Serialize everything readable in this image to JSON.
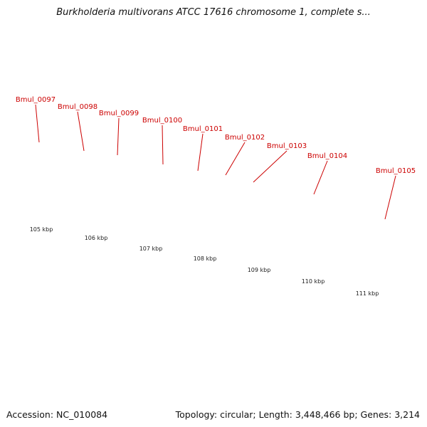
{
  "title": "Burkholderia multivorans ATCC 17616 chromosome 1, complete s...",
  "footer": {
    "accession": "Accession: NC_010084",
    "summary": "Topology: circular; Length: 3,448,466 bp; Genes: 3,214"
  },
  "colors": {
    "forward_cds": "#ee1111",
    "reverse_cds": "#11ddee",
    "other_feature": "#4a4a8a",
    "orange_feature": "#ee8a11",
    "backbone": "#777777",
    "ticks": "#117711",
    "gene_label": "#cc0000"
  },
  "genes": [
    "Bmul_0097",
    "Bmul_0098",
    "Bmul_0099",
    "Bmul_0100",
    "Bmul_0101",
    "Bmul_0102",
    "Bmul_0103",
    "Bmul_0104",
    "Bmul_0105"
  ],
  "kbp_labels": [
    "105 kbp",
    "106 kbp",
    "107 kbp",
    "108 kbp",
    "109 kbp",
    "110 kbp",
    "111 kbp"
  ]
}
